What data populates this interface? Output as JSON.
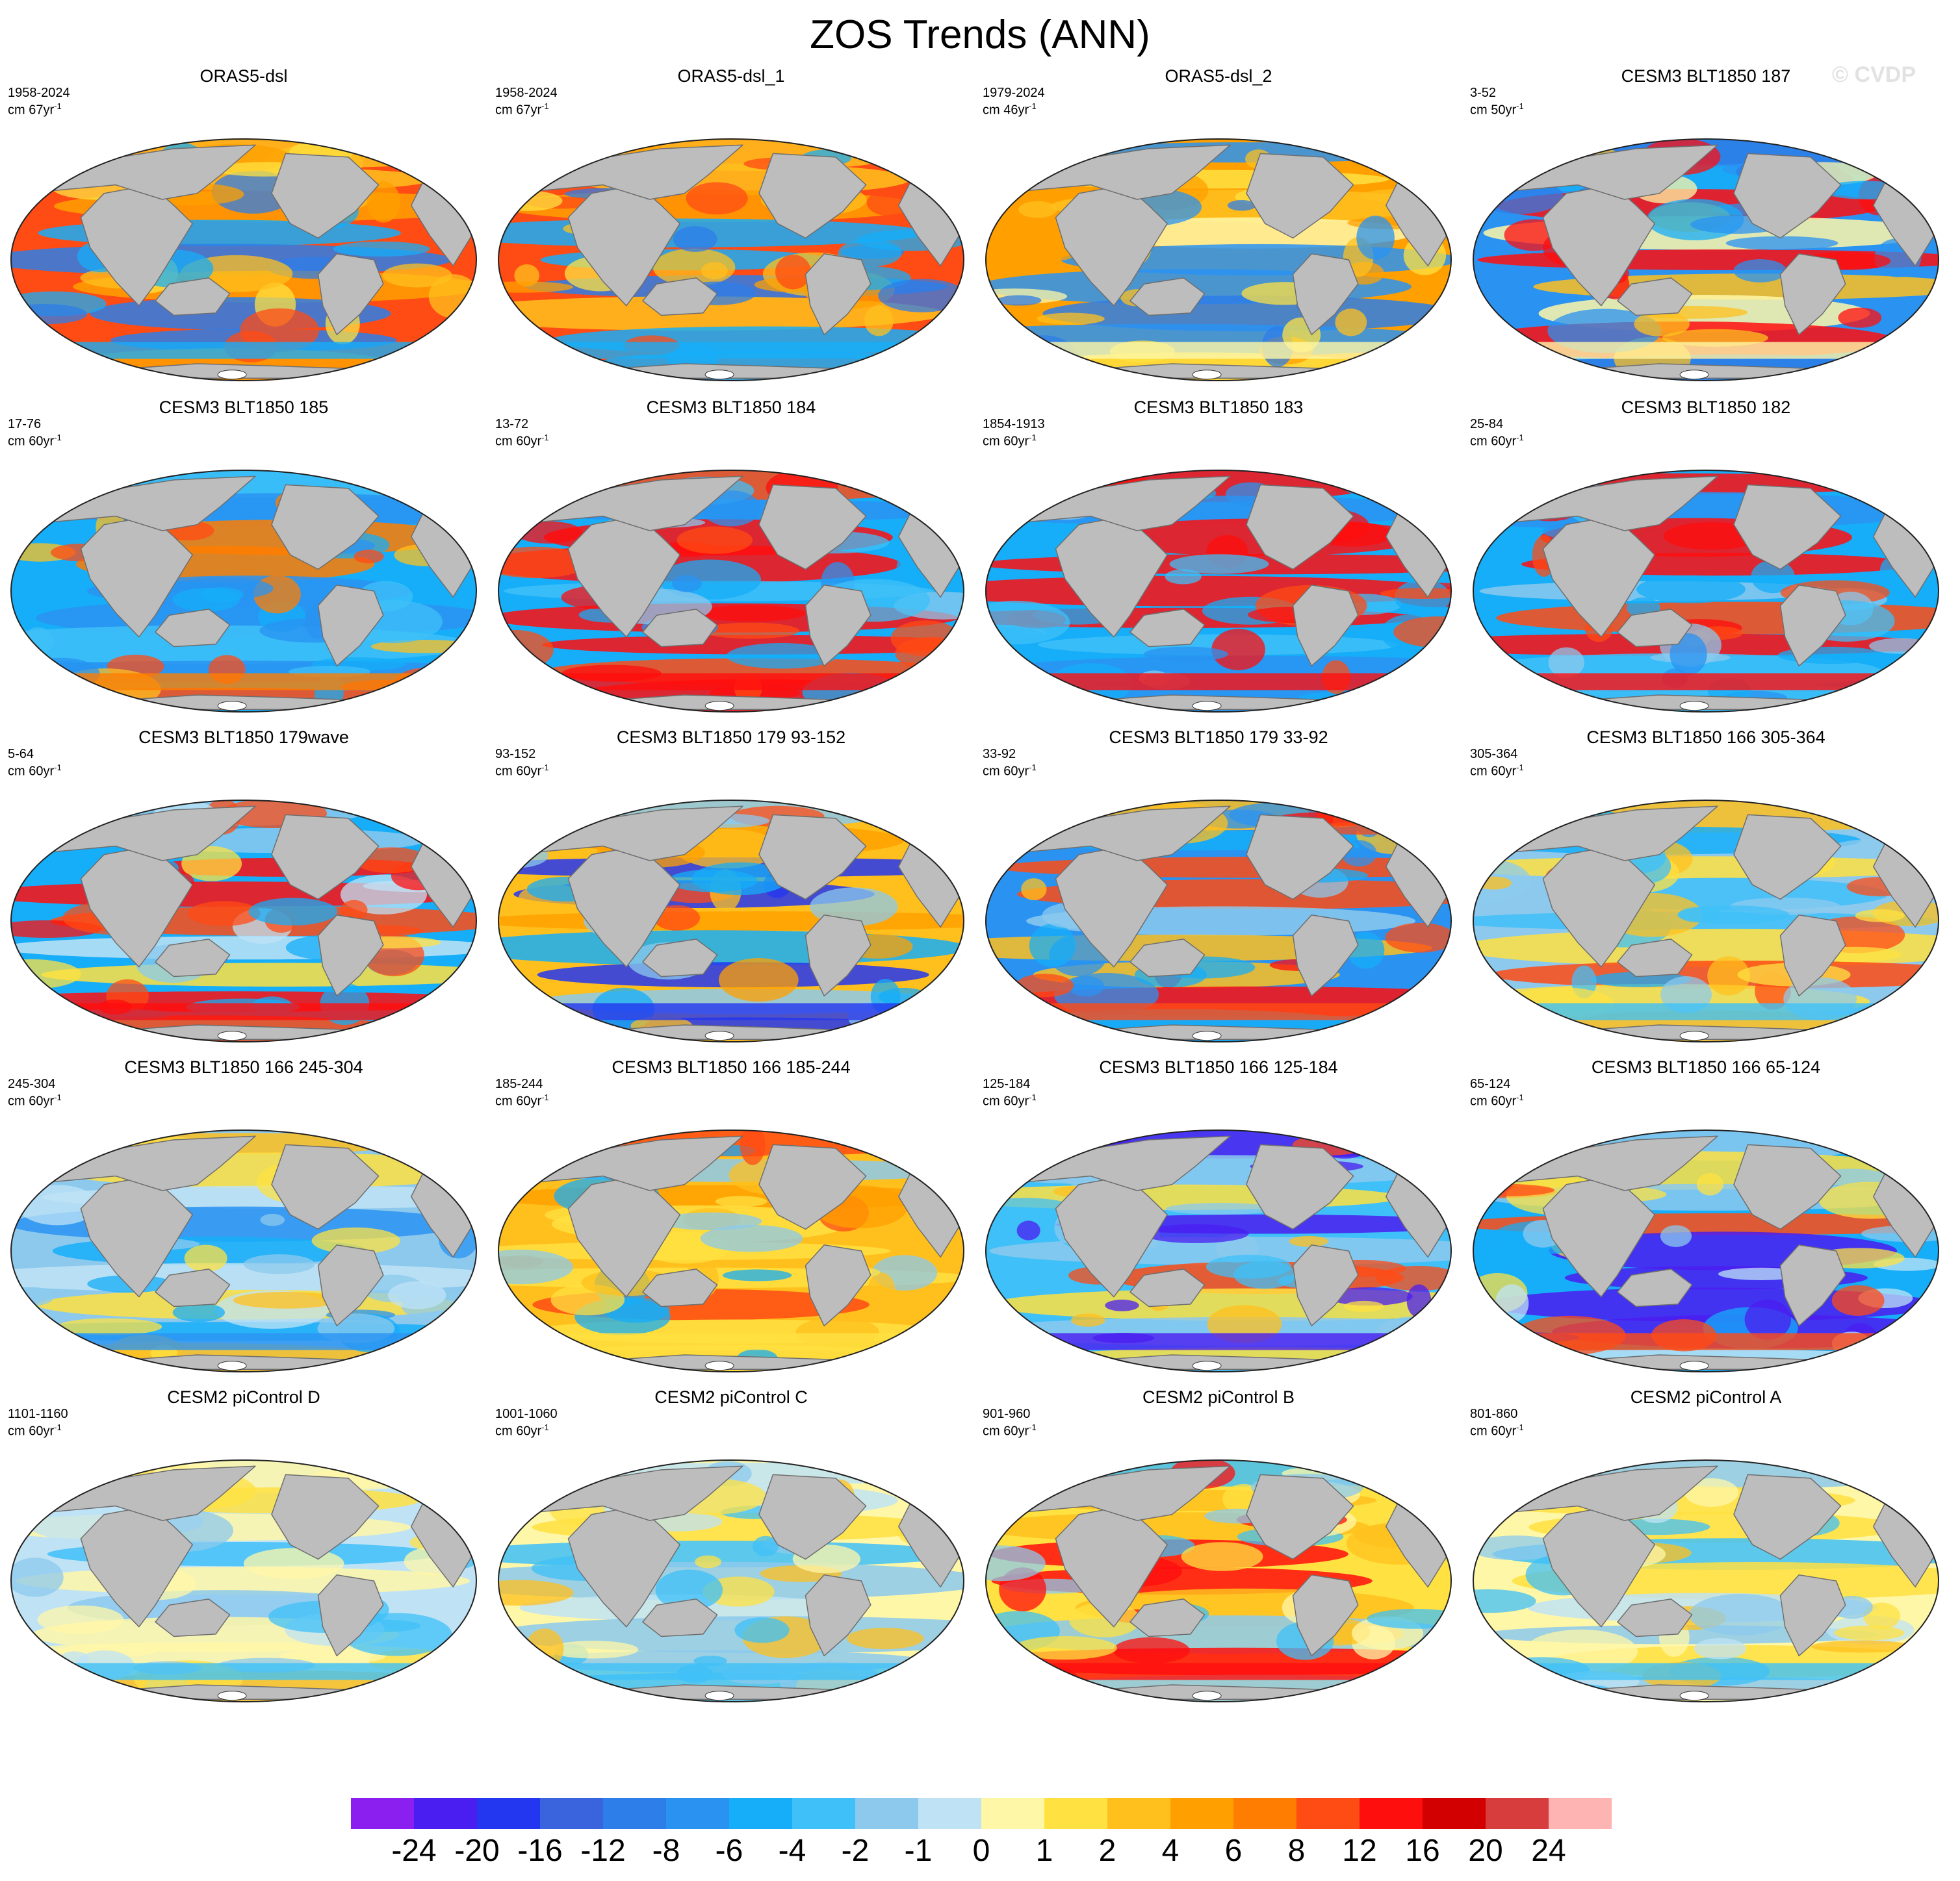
{
  "title": "ZOS Trends (ANN)",
  "watermark": "© CVDP",
  "units_prefix": "cm",
  "units_suffix": "yr",
  "units_exp": "-1",
  "colors": {
    "ocean_base": "#3aa6f0",
    "land": "#bdbdbd",
    "coast": "#6e6e6e",
    "ice": "#ffffff"
  },
  "colorbar": {
    "colors": [
      "#8a1ff0",
      "#4a1df0",
      "#2336f0",
      "#3a63de",
      "#2d7ee8",
      "#2a93f2",
      "#16aef8",
      "#3fc0f8",
      "#8cc9ed",
      "#bfe3f5",
      "#fff7a8",
      "#ffe141",
      "#ffc01d",
      "#ffa000",
      "#ff7d00",
      "#ff4b14",
      "#ff0e0e",
      "#d20000",
      "#d83d3d",
      "#ffb4b4"
    ],
    "labels": [
      "-24",
      "-20",
      "-16",
      "-12",
      "-8",
      "-6",
      "-4",
      "-2",
      "-1",
      "0",
      "1",
      "2",
      "4",
      "6",
      "8",
      "12",
      "16",
      "20",
      "24"
    ]
  },
  "panels": [
    {
      "title": "ORAS5-dsl",
      "period": "1958-2024",
      "years": "67",
      "palette": [
        15,
        12,
        11,
        4,
        13,
        6
      ]
    },
    {
      "title": "ORAS5-dsl_1",
      "period": "1958-2024",
      "years": "67",
      "palette": [
        15,
        12,
        11,
        4,
        13,
        6
      ]
    },
    {
      "title": "ORAS5-dsl_2",
      "period": "1979-2024",
      "years": "46",
      "palette": [
        13,
        11,
        5,
        4,
        12,
        10
      ]
    },
    {
      "title": "CESM3 BLT1850 187",
      "period": "3-52",
      "years": "50",
      "palette": [
        5,
        6,
        12,
        4,
        16,
        10
      ]
    },
    {
      "title": "CESM3 BLT1850 185",
      "period": "17-76",
      "years": "60",
      "palette": [
        6,
        5,
        12,
        7,
        15,
        14
      ]
    },
    {
      "title": "CESM3 BLT1850 184",
      "period": "13-72",
      "years": "60",
      "palette": [
        6,
        5,
        8,
        7,
        15,
        16
      ]
    },
    {
      "title": "CESM3 BLT1850 183",
      "period": "1854-1913",
      "years": "60",
      "palette": [
        6,
        5,
        8,
        7,
        15,
        16
      ]
    },
    {
      "title": "CESM3 BLT1850 182",
      "period": "25-84",
      "years": "60",
      "palette": [
        6,
        5,
        8,
        7,
        15,
        16
      ]
    },
    {
      "title": "CESM3 BLT1850 179wave",
      "period": "5-64",
      "years": "60",
      "palette": [
        6,
        8,
        11,
        9,
        15,
        16
      ]
    },
    {
      "title": "CESM3 BLT1850 179 93-152",
      "period": "93-152",
      "years": "60",
      "palette": [
        12,
        13,
        8,
        6,
        15,
        2
      ]
    },
    {
      "title": "CESM3 BLT1850 179 33-92",
      "period": "33-92",
      "years": "60",
      "palette": [
        5,
        6,
        12,
        8,
        16,
        15
      ]
    },
    {
      "title": "CESM3 BLT1850 166 305-364",
      "period": "305-364",
      "years": "60",
      "palette": [
        8,
        11,
        6,
        12,
        15,
        7
      ]
    },
    {
      "title": "CESM3 BLT1850 166 245-304",
      "period": "245-304",
      "years": "60",
      "palette": [
        8,
        9,
        11,
        6,
        12,
        5
      ]
    },
    {
      "title": "CESM3 BLT1850 166 185-244",
      "period": "185-244",
      "years": "60",
      "palette": [
        12,
        13,
        8,
        6,
        15,
        11
      ]
    },
    {
      "title": "CESM3 BLT1850 166 125-184",
      "period": "125-184",
      "years": "60",
      "palette": [
        7,
        11,
        8,
        12,
        15,
        1
      ]
    },
    {
      "title": "CESM3 BLT1850 166 65-124",
      "period": "65-124",
      "years": "60",
      "palette": [
        6,
        8,
        11,
        9,
        1,
        15
      ]
    },
    {
      "title": "CESM2 piControl D",
      "period": "1101-1160",
      "years": "60",
      "palette": [
        9,
        10,
        11,
        8,
        12,
        7
      ]
    },
    {
      "title": "CESM2 piControl C",
      "period": "1001-1060",
      "years": "60",
      "palette": [
        10,
        11,
        9,
        8,
        12,
        7
      ]
    },
    {
      "title": "CESM2 piControl B",
      "period": "901-960",
      "years": "60",
      "palette": [
        11,
        8,
        12,
        7,
        10,
        16
      ]
    },
    {
      "title": "CESM2 piControl A",
      "period": "801-860",
      "years": "60",
      "palette": [
        10,
        9,
        11,
        8,
        12,
        7
      ]
    }
  ]
}
